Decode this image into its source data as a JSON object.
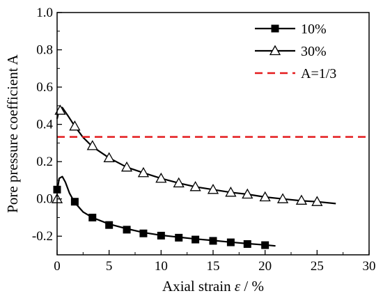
{
  "chart_data": {
    "type": "line",
    "xlabel_main": "Axial strain ",
    "xlabel_symbol": "ε",
    "xlabel_unit": " / %",
    "ylabel": "Pore pressure coefficient A",
    "xlim": [
      0,
      30
    ],
    "ylim": [
      -0.3,
      1.0
    ],
    "xticks": [
      0,
      5,
      10,
      15,
      20,
      25,
      30
    ],
    "xtick_labels": [
      "0",
      "5",
      "10",
      "15",
      "20",
      "25",
      "30"
    ],
    "yticks": [
      -0.2,
      0.0,
      0.2,
      0.4,
      0.6,
      0.8,
      1.0
    ],
    "ytick_labels": [
      "-0.2",
      "0.0",
      "0.2",
      "0.4",
      "0.6",
      "0.8",
      "1.0"
    ],
    "grid": false,
    "legend_position": "top-right",
    "series": [
      {
        "name": "10%",
        "marker": "filled-square",
        "color": "#000000",
        "curve": [
          [
            0,
            0.04
          ],
          [
            0.2,
            0.11
          ],
          [
            0.5,
            0.12
          ],
          [
            0.8,
            0.09
          ],
          [
            1.2,
            0.03
          ],
          [
            1.7,
            -0.02
          ],
          [
            2.5,
            -0.07
          ],
          [
            3.4,
            -0.1
          ],
          [
            5.0,
            -0.135
          ],
          [
            6.7,
            -0.16
          ],
          [
            8.3,
            -0.18
          ],
          [
            10.0,
            -0.195
          ],
          [
            11.7,
            -0.205
          ],
          [
            13.3,
            -0.215
          ],
          [
            15.0,
            -0.223
          ],
          [
            16.7,
            -0.232
          ],
          [
            18.3,
            -0.24
          ],
          [
            20.0,
            -0.247
          ],
          [
            21.0,
            -0.252
          ]
        ],
        "marker_points": [
          [
            0,
            0.05
          ],
          [
            1.7,
            -0.015
          ],
          [
            3.4,
            -0.1
          ],
          [
            5.0,
            -0.14
          ],
          [
            6.7,
            -0.165
          ],
          [
            8.3,
            -0.185
          ],
          [
            10.0,
            -0.197
          ],
          [
            11.7,
            -0.208
          ],
          [
            13.3,
            -0.218
          ],
          [
            15.0,
            -0.225
          ],
          [
            16.7,
            -0.233
          ],
          [
            18.3,
            -0.242
          ],
          [
            20.0,
            -0.248
          ]
        ]
      },
      {
        "name": "30%",
        "marker": "open-triangle",
        "color": "#000000",
        "curve": [
          [
            0,
            0.43
          ],
          [
            0.2,
            0.48
          ],
          [
            0.5,
            0.49
          ],
          [
            1.0,
            0.45
          ],
          [
            1.7,
            0.39
          ],
          [
            2.5,
            0.33
          ],
          [
            3.4,
            0.28
          ],
          [
            5.0,
            0.22
          ],
          [
            6.7,
            0.17
          ],
          [
            8.3,
            0.14
          ],
          [
            10.0,
            0.11
          ],
          [
            11.7,
            0.085
          ],
          [
            13.3,
            0.065
          ],
          [
            15.0,
            0.05
          ],
          [
            16.7,
            0.035
          ],
          [
            18.3,
            0.025
          ],
          [
            20.0,
            0.01
          ],
          [
            21.7,
            0.0
          ],
          [
            23.5,
            -0.01
          ],
          [
            25.0,
            -0.015
          ],
          [
            26.8,
            -0.025
          ]
        ],
        "marker_points": [
          [
            0,
            0.0
          ],
          [
            0.3,
            0.475
          ],
          [
            1.7,
            0.39
          ],
          [
            3.4,
            0.285
          ],
          [
            5.0,
            0.22
          ],
          [
            6.7,
            0.17
          ],
          [
            8.3,
            0.14
          ],
          [
            10.0,
            0.11
          ],
          [
            11.7,
            0.085
          ],
          [
            13.3,
            0.065
          ],
          [
            15.0,
            0.05
          ],
          [
            16.7,
            0.035
          ],
          [
            18.3,
            0.025
          ],
          [
            20.0,
            0.01
          ],
          [
            21.7,
            0.0
          ],
          [
            23.5,
            -0.008
          ],
          [
            25.0,
            -0.015
          ]
        ]
      },
      {
        "name": "A=1/3",
        "marker": "none",
        "style": "dashed",
        "color": "#e41a1c",
        "curve": [
          [
            0,
            0.333
          ],
          [
            30,
            0.333
          ]
        ]
      }
    ]
  }
}
